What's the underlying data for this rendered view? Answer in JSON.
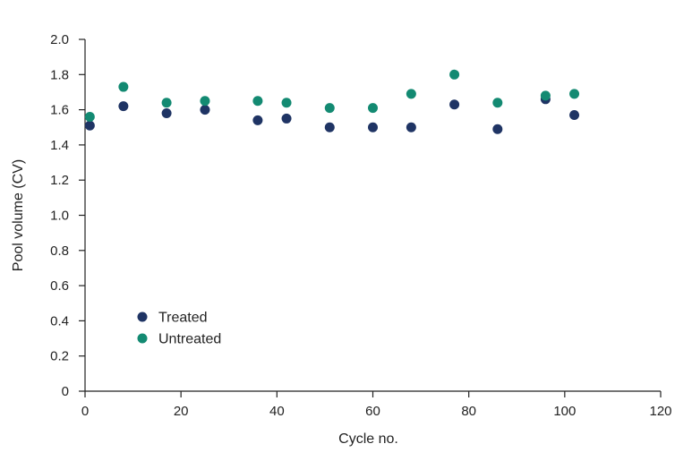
{
  "chart_data": {
    "type": "scatter",
    "title": "",
    "xlabel": "Cycle no.",
    "ylabel": "Pool volume (CV)",
    "xlim": [
      0,
      120
    ],
    "ylim": [
      0,
      2.0
    ],
    "x_ticks": [
      "0",
      "20",
      "40",
      "60",
      "80",
      "100",
      "120"
    ],
    "y_ticks": [
      "0",
      "0.2",
      "0.4",
      "0.6",
      "0.8",
      "1.0",
      "1.2",
      "1.4",
      "1.6",
      "1.8",
      "2.0"
    ],
    "grid": false,
    "legend_position": "lower-left",
    "series": [
      {
        "name": "Treated",
        "color": "#1f3464",
        "x": [
          1,
          8,
          17,
          25,
          36,
          42,
          51,
          60,
          68,
          77,
          86,
          96,
          102
        ],
        "y": [
          1.51,
          1.62,
          1.58,
          1.6,
          1.54,
          1.55,
          1.5,
          1.5,
          1.5,
          1.63,
          1.49,
          1.66,
          1.57
        ]
      },
      {
        "name": "Untreated",
        "color": "#138a72",
        "x": [
          1,
          8,
          17,
          25,
          36,
          42,
          51,
          60,
          68,
          77,
          86,
          96,
          102
        ],
        "y": [
          1.56,
          1.73,
          1.64,
          1.65,
          1.65,
          1.64,
          1.61,
          1.61,
          1.69,
          1.8,
          1.64,
          1.68,
          1.69
        ]
      }
    ]
  }
}
